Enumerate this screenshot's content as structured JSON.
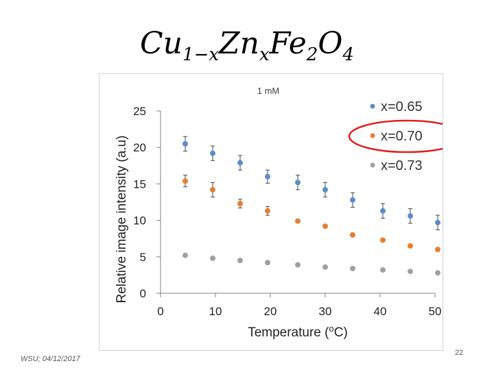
{
  "slide": {
    "title_main": "Cu",
    "title_sub1": "1−x",
    "title_mid": "Zn",
    "title_sub2": "x",
    "title_end1": "Fe",
    "title_sub3": "2",
    "title_end2": "O",
    "title_sub4": "4",
    "footer_left": "WSU; 04/12/2017",
    "page_number": "22"
  },
  "colors": {
    "accent_circle": "#e02020"
  },
  "chart_data": {
    "type": "scatter",
    "title": "1 mM",
    "xlabel": "Temperature (oC)",
    "ylabel": "Relative image intensity (a.u)",
    "xlim": [
      0,
      50
    ],
    "ylim": [
      0,
      25
    ],
    "xticks": [
      0,
      10,
      20,
      30,
      40,
      50
    ],
    "yticks": [
      0,
      5,
      10,
      15,
      20,
      25
    ],
    "grid": false,
    "legend_position": "top-right",
    "x": [
      4.5,
      9.5,
      14.5,
      19.5,
      25,
      30,
      35,
      40.5,
      45.5,
      50.5
    ],
    "series": [
      {
        "name": "x=0.65",
        "color": "#5b8ec7",
        "values": [
          20.5,
          19.2,
          17.9,
          16.0,
          15.2,
          14.2,
          12.8,
          11.3,
          10.6,
          9.7
        ],
        "errors": [
          1.0,
          1.0,
          1.0,
          0.9,
          1.0,
          1.0,
          1.0,
          1.0,
          1.0,
          1.0
        ]
      },
      {
        "name": "x=0.70",
        "color": "#e47f32",
        "values": [
          15.4,
          14.2,
          12.3,
          11.3,
          9.9,
          9.2,
          8.0,
          7.3,
          6.5,
          6.0
        ],
        "errors": [
          0.8,
          1.0,
          0.6,
          0.6,
          0,
          0,
          0,
          0,
          0,
          0
        ]
      },
      {
        "name": "x=0.73",
        "color": "#a0a0a0",
        "values": [
          5.2,
          4.8,
          4.5,
          4.2,
          3.9,
          3.6,
          3.4,
          3.2,
          3.0,
          2.8
        ],
        "errors": [
          0,
          0,
          0,
          0,
          0,
          0,
          0,
          0,
          0,
          0
        ]
      }
    ],
    "highlighted_series": "x=0.70"
  }
}
